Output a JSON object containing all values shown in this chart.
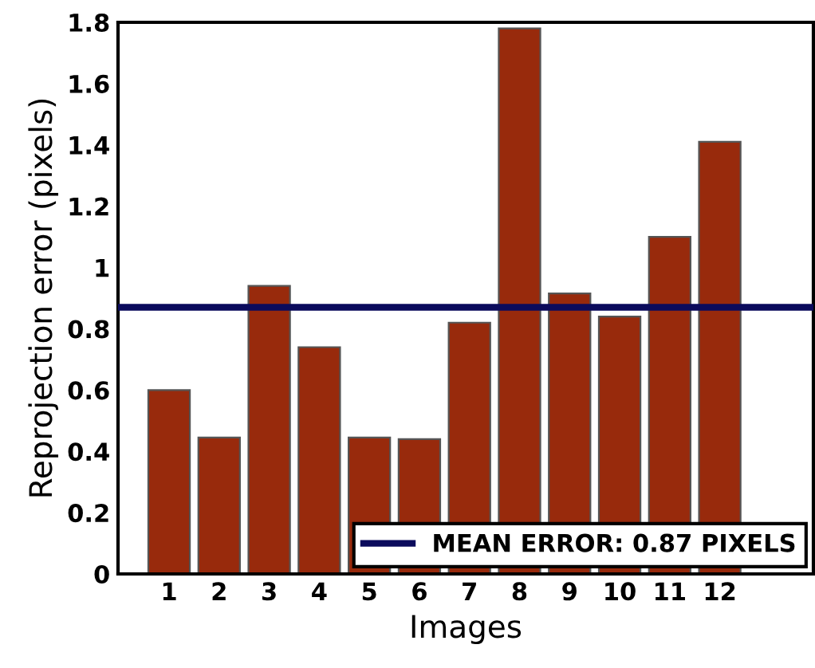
{
  "chart_data": {
    "type": "bar",
    "xlabel": "Images",
    "ylabel": "Reprojection error (pixels)",
    "categories": [
      "1",
      "2",
      "3",
      "4",
      "5",
      "6",
      "7",
      "8",
      "9",
      "10",
      "11",
      "12"
    ],
    "values": [
      0.6,
      0.445,
      0.94,
      0.74,
      0.445,
      0.44,
      0.82,
      1.78,
      0.915,
      0.84,
      1.1,
      1.41
    ],
    "color": "#982a0c",
    "ylim": [
      0,
      1.8
    ],
    "yticks": [
      0,
      0.2,
      0.4,
      0.6,
      0.8,
      1,
      1.2,
      1.4,
      1.6,
      1.8
    ],
    "ref_lines": [
      {
        "axis": "y",
        "value": 0.87,
        "label": "MEAN ERROR: 0.87 PIXELS",
        "color": "#0b0b5c",
        "line_style": "solid"
      }
    ],
    "legend": "bottom right",
    "grid": false
  }
}
